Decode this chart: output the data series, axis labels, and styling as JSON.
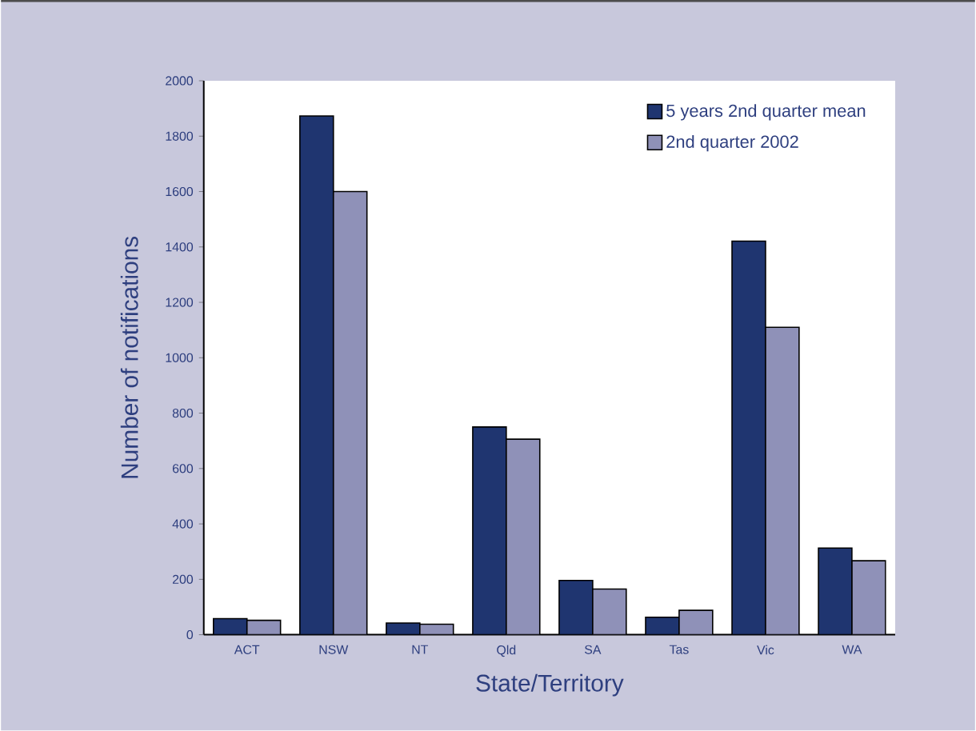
{
  "chart_data": {
    "type": "bar",
    "xlabel": "State/Territory",
    "ylabel": "Number of notifications",
    "categories": [
      "ACT",
      "NSW",
      "NT",
      "Qld",
      "SA",
      "Tas",
      "Vic",
      "WA"
    ],
    "series": [
      {
        "name": "5 years 2nd quarter mean",
        "color": "#1f3570",
        "values": [
          58,
          1873,
          42,
          750,
          196,
          63,
          1421,
          313
        ]
      },
      {
        "name": "2nd quarter 2002",
        "color": "#8f91b8",
        "values": [
          52,
          1600,
          38,
          706,
          165,
          88,
          1110,
          267
        ]
      }
    ],
    "ylim": [
      0,
      2000
    ],
    "yticks": [
      0,
      200,
      400,
      600,
      800,
      1000,
      1200,
      1400,
      1600,
      1800,
      2000
    ],
    "grid": false,
    "legend": "top right"
  }
}
